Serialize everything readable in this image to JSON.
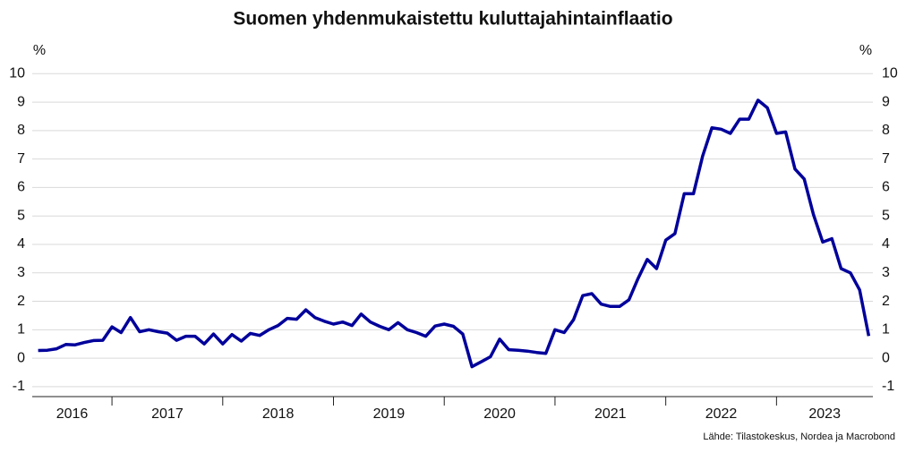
{
  "chart_data": {
    "type": "line",
    "title": "Suomen yhdenmukaistettu kuluttajahintainflaatio",
    "y_unit": "%",
    "source": "Lähde: Tilastokeskus, Nordea ja Macrobond",
    "x": [
      2016.333,
      2016.417,
      2016.5,
      2016.583,
      2016.667,
      2016.75,
      2016.833,
      2016.917,
      2017,
      2017.083,
      2017.167,
      2017.25,
      2017.333,
      2017.417,
      2017.5,
      2017.583,
      2017.667,
      2017.75,
      2017.833,
      2017.917,
      2018,
      2018.083,
      2018.167,
      2018.25,
      2018.333,
      2018.417,
      2018.5,
      2018.583,
      2018.667,
      2018.75,
      2018.833,
      2018.917,
      2019,
      2019.083,
      2019.167,
      2019.25,
      2019.333,
      2019.417,
      2019.5,
      2019.583,
      2019.667,
      2019.75,
      2019.833,
      2019.917,
      2020,
      2020.083,
      2020.167,
      2020.25,
      2020.333,
      2020.417,
      2020.5,
      2020.583,
      2020.667,
      2020.75,
      2020.833,
      2020.917,
      2021,
      2021.083,
      2021.167,
      2021.25,
      2021.333,
      2021.417,
      2021.5,
      2021.583,
      2021.667,
      2021.75,
      2021.833,
      2021.917,
      2022,
      2022.083,
      2022.167,
      2022.25,
      2022.333,
      2022.417,
      2022.5,
      2022.583,
      2022.667,
      2022.75,
      2022.833,
      2022.917,
      2023,
      2023.083,
      2023.167,
      2023.25,
      2023.333,
      2023.417,
      2023.5,
      2023.583,
      2023.667,
      2023.75,
      2023.833
    ],
    "series": [
      {
        "color": "#00009b",
        "values": [
          0.27,
          0.28,
          0.33,
          0.48,
          0.47,
          0.55,
          0.62,
          0.63,
          1.1,
          0.9,
          1.43,
          0.93,
          1.0,
          0.93,
          0.88,
          0.63,
          0.77,
          0.77,
          0.5,
          0.85,
          0.5,
          0.83,
          0.6,
          0.87,
          0.8,
          1.0,
          1.15,
          1.4,
          1.37,
          1.7,
          1.43,
          1.3,
          1.2,
          1.27,
          1.15,
          1.55,
          1.27,
          1.12,
          1.0,
          1.25,
          1.0,
          0.9,
          0.77,
          1.13,
          1.2,
          1.12,
          0.85,
          -0.3,
          -0.13,
          0.05,
          0.67,
          0.3,
          0.28,
          0.25,
          0.2,
          0.17,
          1.0,
          0.9,
          1.35,
          2.2,
          2.27,
          1.9,
          1.82,
          1.82,
          2.05,
          2.8,
          3.47,
          3.15,
          4.15,
          4.38,
          5.78,
          5.78,
          7.1,
          8.1,
          8.05,
          7.9,
          8.4,
          8.4,
          9.07,
          8.8,
          7.9,
          7.95,
          6.65,
          6.3,
          5.05,
          4.08,
          4.2,
          3.15,
          3.0,
          2.4,
          0.78
        ]
      }
    ],
    "xlim": [
      2016.28,
      2023.87
    ],
    "xticks": [
      2016,
      2017,
      2018,
      2019,
      2020,
      2021,
      2022,
      2023
    ],
    "ylim": [
      -1.35,
      10.45
    ],
    "yticks": [
      -1,
      0,
      1,
      2,
      3,
      4,
      5,
      6,
      7,
      8,
      9,
      10
    ],
    "grid": true
  }
}
